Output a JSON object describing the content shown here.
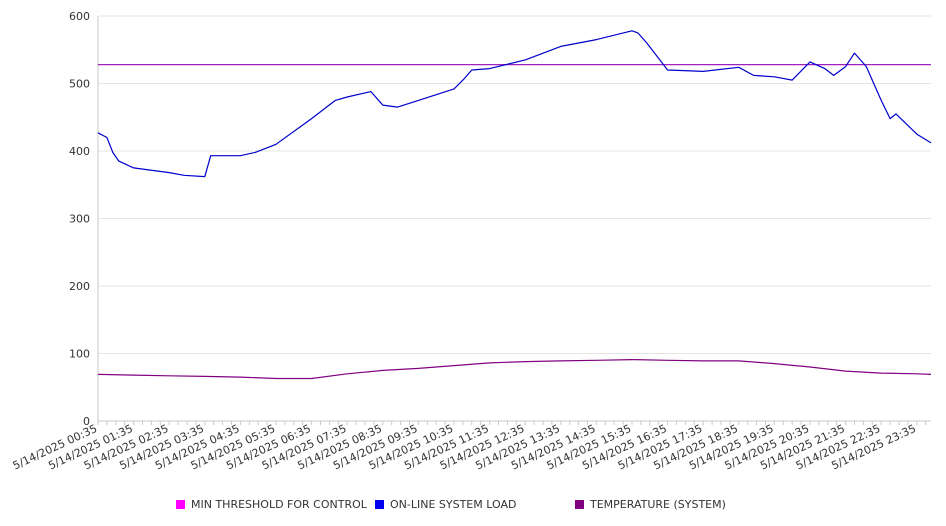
{
  "chart_data": {
    "type": "line",
    "title": "",
    "xlabel": "",
    "ylabel": "",
    "ylim": [
      0,
      600
    ],
    "yticks": [
      0,
      100,
      200,
      300,
      400,
      500,
      600
    ],
    "grid": true,
    "legend_position": "bottom",
    "x_tick_labels": [
      "5/14/2025 00:35",
      "5/14/2025 01:35",
      "5/14/2025 02:35",
      "5/14/2025 03:35",
      "5/14/2025 04:35",
      "5/14/2025 05:35",
      "5/14/2025 06:35",
      "5/14/2025 07:35",
      "5/14/2025 08:35",
      "5/14/2025 09:35",
      "5/14/2025 10:35",
      "5/14/2025 11:35",
      "5/14/2025 12:35",
      "5/14/2025 13:35",
      "5/14/2025 14:35",
      "5/14/2025 15:35",
      "5/14/2025 16:35",
      "5/14/2025 17:35",
      "5/14/2025 18:35",
      "5/14/2025 19:35",
      "5/14/2025 20:35",
      "5/14/2025 21:35",
      "5/14/2025 22:35",
      "5/14/2025 23:35"
    ],
    "x": [
      "00:35",
      "01:35",
      "02:35",
      "03:35",
      "04:35",
      "05:35",
      "06:35",
      "07:35",
      "08:35",
      "09:35",
      "10:35",
      "11:35",
      "12:35",
      "13:35",
      "14:35",
      "15:35",
      "16:35",
      "17:35",
      "18:35",
      "19:35",
      "20:35",
      "21:35",
      "22:35",
      "23:35"
    ],
    "series": [
      {
        "name": "MIN THRESHOLD FOR CONTROL",
        "color": "#ff00ff",
        "line_color": "#a020c0",
        "values": [
          528,
          528,
          528,
          528,
          528,
          528,
          528,
          528,
          528,
          528,
          528,
          528,
          528,
          528,
          528,
          528,
          528,
          528,
          528,
          528,
          528,
          528,
          528,
          528
        ]
      },
      {
        "name": "ON-LINE SYSTEM LOAD",
        "color": "#0000ee",
        "line_color": "#0000cc",
        "points": [
          [
            "00:35",
            427
          ],
          [
            "00:50",
            420
          ],
          [
            "01:00",
            398
          ],
          [
            "01:10",
            385
          ],
          [
            "01:35",
            375
          ],
          [
            "02:35",
            368
          ],
          [
            "03:00",
            364
          ],
          [
            "03:35",
            362
          ],
          [
            "03:45",
            393
          ],
          [
            "04:35",
            393
          ],
          [
            "05:00",
            398
          ],
          [
            "05:35",
            410
          ],
          [
            "06:35",
            448
          ],
          [
            "07:15",
            475
          ],
          [
            "07:35",
            480
          ],
          [
            "08:15",
            488
          ],
          [
            "08:35",
            468
          ],
          [
            "09:00",
            465
          ],
          [
            "09:35",
            475
          ],
          [
            "10:35",
            492
          ],
          [
            "10:50",
            505
          ],
          [
            "11:05",
            520
          ],
          [
            "11:35",
            522
          ],
          [
            "12:35",
            535
          ],
          [
            "13:35",
            555
          ],
          [
            "14:35",
            565
          ],
          [
            "15:35",
            578
          ],
          [
            "15:45",
            575
          ],
          [
            "16:00",
            560
          ],
          [
            "16:35",
            520
          ],
          [
            "17:35",
            518
          ],
          [
            "18:35",
            524
          ],
          [
            "19:00",
            512
          ],
          [
            "19:35",
            510
          ],
          [
            "20:05",
            505
          ],
          [
            "20:35",
            532
          ],
          [
            "21:00",
            522
          ],
          [
            "21:15",
            512
          ],
          [
            "21:35",
            525
          ],
          [
            "21:50",
            545
          ],
          [
            "22:10",
            525
          ],
          [
            "22:35",
            475
          ],
          [
            "22:50",
            448
          ],
          [
            "23:00",
            455
          ],
          [
            "23:35",
            425
          ],
          [
            "23:59",
            412
          ]
        ]
      },
      {
        "name": "TEMPERATURE (SYSTEM)",
        "color": "#800080",
        "line_color": "#800080",
        "points": [
          [
            "00:35",
            69
          ],
          [
            "01:35",
            68
          ],
          [
            "02:35",
            67
          ],
          [
            "03:35",
            66
          ],
          [
            "04:35",
            65
          ],
          [
            "05:35",
            63
          ],
          [
            "06:35",
            63
          ],
          [
            "07:35",
            70
          ],
          [
            "08:35",
            75
          ],
          [
            "09:35",
            78
          ],
          [
            "10:35",
            82
          ],
          [
            "11:35",
            86
          ],
          [
            "12:35",
            88
          ],
          [
            "13:35",
            89
          ],
          [
            "14:35",
            90
          ],
          [
            "15:35",
            91
          ],
          [
            "16:35",
            90
          ],
          [
            "17:35",
            89
          ],
          [
            "18:35",
            89
          ],
          [
            "19:35",
            85
          ],
          [
            "20:35",
            80
          ],
          [
            "21:35",
            74
          ],
          [
            "22:35",
            71
          ],
          [
            "23:35",
            70
          ],
          [
            "23:59",
            69
          ]
        ]
      }
    ]
  }
}
